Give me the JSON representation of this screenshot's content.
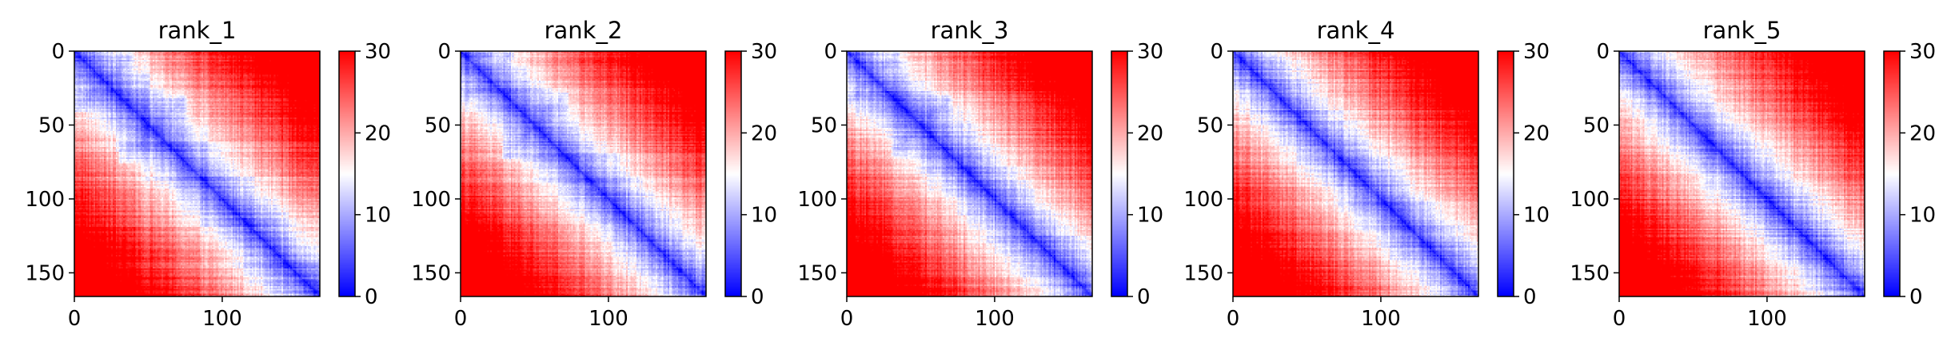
{
  "chart_data": [
    {
      "type": "heatmap",
      "title": "rank_1",
      "n": 166,
      "xticks": [
        0,
        100
      ],
      "yticks": [
        0,
        50,
        100,
        150
      ],
      "colorbar": {
        "min": 0,
        "max": 30,
        "ticks": [
          0,
          10,
          20,
          30
        ],
        "colormap": "bwr"
      },
      "blocks": [
        [
          0,
          40
        ],
        [
          30,
          75
        ]
      ]
    },
    {
      "type": "heatmap",
      "title": "rank_2",
      "n": 166,
      "xticks": [
        0,
        100
      ],
      "yticks": [
        0,
        50,
        100,
        150
      ],
      "colorbar": {
        "min": 0,
        "max": 30,
        "ticks": [
          0,
          10,
          20,
          30
        ],
        "colormap": "bwr"
      },
      "blocks": [
        [
          0,
          35
        ],
        [
          28,
          72
        ]
      ]
    },
    {
      "type": "heatmap",
      "title": "rank_3",
      "n": 166,
      "xticks": [
        0,
        100
      ],
      "yticks": [
        0,
        50,
        100,
        150
      ],
      "colorbar": {
        "min": 0,
        "max": 30,
        "ticks": [
          0,
          10,
          20,
          30
        ],
        "colormap": "bwr"
      },
      "blocks": [
        [
          0,
          35
        ],
        [
          30,
          70
        ]
      ]
    },
    {
      "type": "heatmap",
      "title": "rank_4",
      "n": 166,
      "xticks": [
        0,
        100
      ],
      "yticks": [
        0,
        50,
        100,
        150
      ],
      "colorbar": {
        "min": 0,
        "max": 30,
        "ticks": [
          0,
          10,
          20,
          30
        ],
        "colormap": "bwr"
      },
      "blocks": []
    },
    {
      "type": "heatmap",
      "title": "rank_5",
      "n": 166,
      "xticks": [
        0,
        100
      ],
      "yticks": [
        0,
        50,
        100,
        150
      ],
      "colorbar": {
        "min": 0,
        "max": 30,
        "ticks": [
          0,
          10,
          20,
          30
        ],
        "colormap": "bwr"
      },
      "blocks": []
    }
  ],
  "colors": {
    "low": "#0000ff",
    "mid": "#ffffff",
    "high": "#ff0000"
  }
}
